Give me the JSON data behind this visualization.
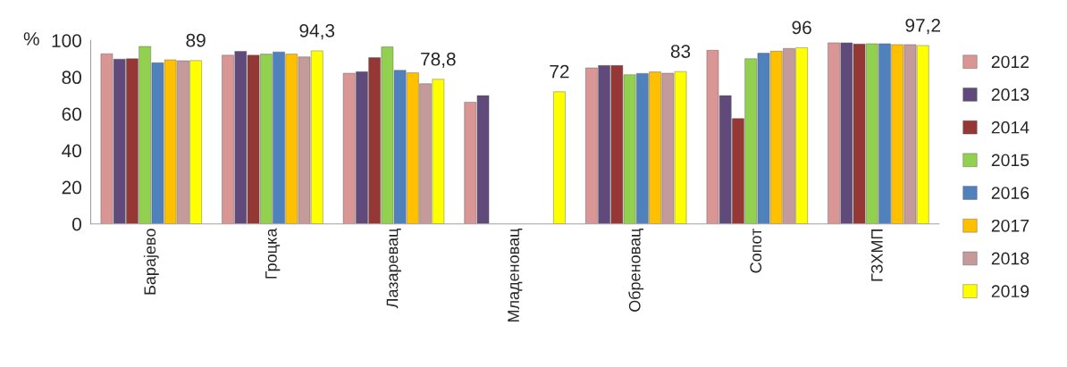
{
  "chart_data": {
    "type": "bar",
    "ylabel": "%",
    "categories": [
      "Барајево",
      "Гроцка",
      "Лазаревац",
      "Младеновац",
      "Обреновац",
      "Сопот",
      "ГЗХМП"
    ],
    "series": [
      {
        "name": "2012",
        "color": "#d99694",
        "values": [
          92.7,
          91.9,
          82.1,
          66.3,
          85,
          94.6,
          98.7
        ]
      },
      {
        "name": "2013",
        "color": "#604a7b",
        "values": [
          89.8,
          94,
          82.9,
          69.9,
          86.3,
          69.9,
          98.7
        ]
      },
      {
        "name": "2014",
        "color": "#953735",
        "values": [
          90,
          91.9,
          90.6,
          null,
          86.3,
          57.4,
          98
        ]
      },
      {
        "name": "2015",
        "color": "#92d050",
        "values": [
          96.7,
          92.5,
          96.4,
          null,
          81.3,
          90,
          98.2
        ]
      },
      {
        "name": "2016",
        "color": "#4f81bd",
        "values": [
          87.8,
          93.7,
          83.7,
          null,
          82,
          93,
          98.2
        ]
      },
      {
        "name": "2017",
        "color": "#ffc000",
        "values": [
          89.4,
          92.5,
          82.4,
          null,
          82.8,
          94.1,
          97.7
        ]
      },
      {
        "name": "2018",
        "color": "#c49a9a",
        "values": [
          88.9,
          91,
          76.4,
          null,
          82.1,
          95.6,
          97.7
        ]
      },
      {
        "name": "2019",
        "color": "#ffff00",
        "values": [
          89,
          94.3,
          78.8,
          72,
          83,
          96,
          97.2
        ],
        "value_labels": [
          "89",
          "94,3",
          "78,8",
          "72",
          "83",
          "96",
          "97,2"
        ]
      }
    ],
    "ylim": [
      0,
      100
    ],
    "yticks": [
      0,
      20,
      40,
      60,
      80,
      100
    ],
    "grid": false,
    "legend": "right"
  }
}
